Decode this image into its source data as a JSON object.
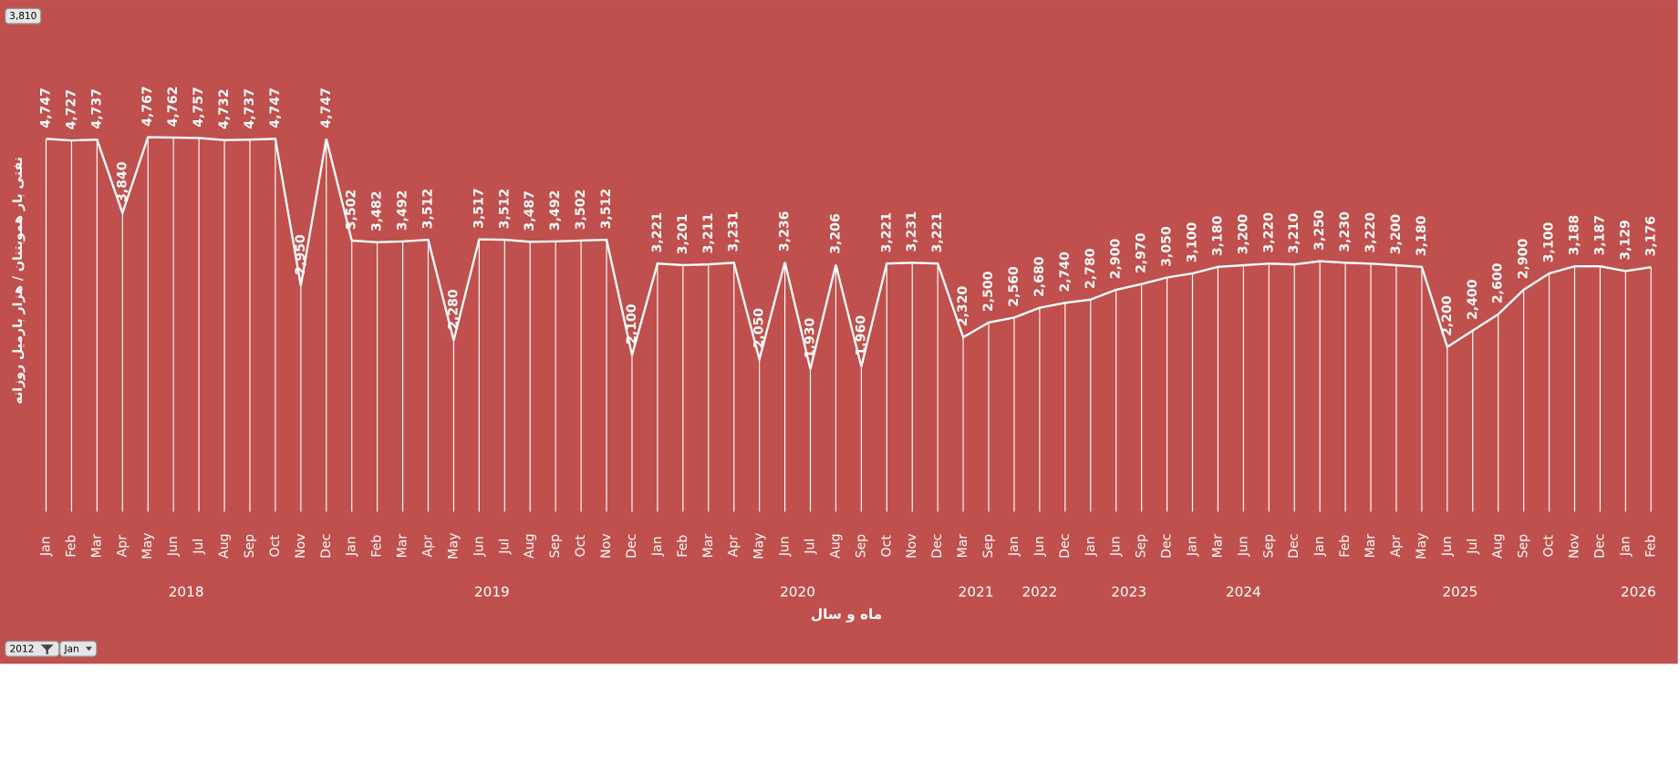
{
  "chart_data": {
    "type": "line",
    "y_title": "نفتی بار هموبتنان / هزار بارمیل روزانه",
    "x_title": "ماه و سال",
    "color": "#ffffff",
    "background": "#c0504d",
    "ylim": [
      0,
      6000
    ],
    "drop_lines": true,
    "groups": [
      {
        "label": "2018",
        "categories": [
          "Jan",
          "Feb",
          "Mar",
          "Apr",
          "May",
          "Jun",
          "Jul",
          "Aug",
          "Sep",
          "Oct",
          "Nov",
          "Dec"
        ],
        "values": [
          4747,
          4727,
          4737,
          3840,
          4767,
          4762,
          4757,
          4732,
          4737,
          4747,
          2950,
          4747
        ],
        "value_labels": [
          "4,747",
          "4,727",
          "4,737",
          "3,840",
          "4,767",
          "4,762",
          "4,757",
          "4,732",
          "4,737",
          "4,747",
          "2,950",
          "4,747"
        ]
      },
      {
        "label": "2019",
        "categories": [
          "Jan",
          "Feb",
          "Mar",
          "Apr",
          "May",
          "Jun",
          "Jul",
          "Aug",
          "Sep",
          "Oct",
          "Nov",
          "Dec"
        ],
        "values": [
          3502,
          3482,
          3492,
          3512,
          2280,
          3517,
          3512,
          3487,
          3492,
          3502,
          3512,
          2100
        ],
        "value_labels": [
          "3,502",
          "3,482",
          "3,492",
          "3,512",
          "2,280",
          "3,517",
          "3,512",
          "3,487",
          "3,492",
          "3,502",
          "3,512",
          "2,100"
        ]
      },
      {
        "label": "2020",
        "categories": [
          "Jan",
          "Feb",
          "Mar",
          "Apr",
          "May",
          "Jun",
          "Jul",
          "Aug",
          "Sep",
          "Oct",
          "Nov",
          "Dec"
        ],
        "values": [
          3221,
          3201,
          3211,
          3231,
          2050,
          3236,
          1930,
          3206,
          1960,
          3221,
          3231,
          3221
        ],
        "value_labels": [
          "3,221",
          "3,201",
          "3,211",
          "3,231",
          "2,050",
          "3,236",
          "1,930",
          "3,206",
          "1,960",
          "3,221",
          "3,231",
          "3,221"
        ]
      },
      {
        "label": "2021",
        "categories": [
          "Mar",
          "Sep"
        ],
        "values": [
          2320,
          2500
        ],
        "value_labels": [
          "2,320",
          "2,500"
        ]
      },
      {
        "label": "2022",
        "categories": [
          "Jan",
          "Jun",
          "Dec"
        ],
        "values": [
          2560,
          2680,
          2740
        ],
        "value_labels": [
          "2,560",
          "2,680",
          "2,740"
        ]
      },
      {
        "label": "2023",
        "categories": [
          "Jan",
          "Jun",
          "Sep",
          "Dec"
        ],
        "values": [
          2780,
          2900,
          2970,
          3050
        ],
        "value_labels": [
          "2,780",
          "2,900",
          "2,970",
          "3,050"
        ]
      },
      {
        "label": "2024",
        "categories": [
          "Jan",
          "Mar",
          "Jun",
          "Sep",
          "Dec"
        ],
        "values": [
          3100,
          3180,
          3200,
          3220,
          3210
        ],
        "value_labels": [
          "3,100",
          "3,180",
          "3,200",
          "3,220",
          "3,210"
        ]
      },
      {
        "label": "2025",
        "categories": [
          "Jan",
          "Feb",
          "Mar",
          "Apr",
          "May",
          "Jun",
          "Jul",
          "Aug",
          "Sep",
          "Oct",
          "Nov",
          "Dec"
        ],
        "values": [
          3250,
          3230,
          3220,
          3200,
          3180,
          2200,
          2400,
          2600,
          2900,
          3100,
          3188,
          3187
        ],
        "value_labels": [
          "3,250",
          "3,230",
          "3,220",
          "3,200",
          "3,180",
          "2,200",
          "2,400",
          "2,600",
          "2,900",
          "3,100",
          "3,188",
          "3,187"
        ]
      },
      {
        "label": "2026",
        "categories": [
          "Jan",
          "Feb"
        ],
        "values": [
          3129,
          3176
        ],
        "value_labels": [
          "3,129",
          "3,176"
        ]
      }
    ]
  },
  "controls": {
    "value_button": "3,810",
    "year_filter": "2012",
    "month_filter": "Jan"
  }
}
